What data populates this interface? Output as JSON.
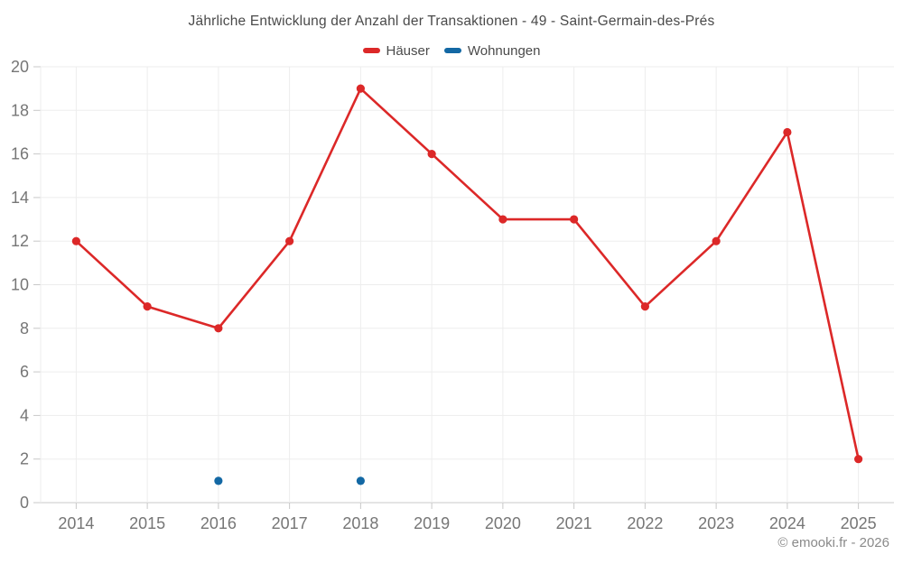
{
  "footer": {
    "copyright": "© emooki.fr - 2026"
  },
  "colors": {
    "background": "#ffffff",
    "grid": "#ededed",
    "axis_line": "#c8c8c8",
    "tick_label": "#767676",
    "title_text": "#4a4a4a",
    "copyright_text": "#8a8a8a",
    "haeuser": "#dc2828",
    "wohnungen": "#1368a4"
  },
  "chart_data": {
    "type": "line",
    "title": "Jährliche Entwicklung der Anzahl der Transaktionen - 49 - Saint-Germain-des-Prés",
    "categories": [
      "2014",
      "2015",
      "2016",
      "2017",
      "2018",
      "2019",
      "2020",
      "2021",
      "2022",
      "2023",
      "2024",
      "2025"
    ],
    "series": [
      {
        "name": "Häuser",
        "color": "#dc2828",
        "values": [
          12,
          9,
          8,
          12,
          19,
          16,
          13,
          13,
          9,
          12,
          17,
          2
        ]
      },
      {
        "name": "Wohnungen",
        "color": "#1368a4",
        "values": [
          null,
          null,
          1,
          null,
          1,
          null,
          null,
          null,
          null,
          null,
          null,
          null
        ]
      }
    ],
    "xlabel": "",
    "ylabel": "",
    "ylim": [
      0,
      20
    ],
    "ytick_step": 2,
    "grid": "on",
    "legend_position": "top"
  }
}
